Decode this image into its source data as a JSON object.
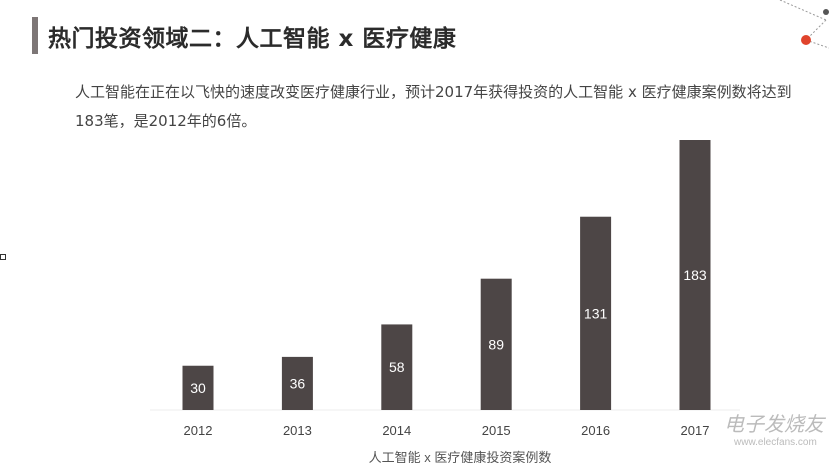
{
  "header": {
    "title": "热门投资领域二：人工智能 x 医疗健康",
    "description": "人工智能在正在以飞快的速度改变医疗健康行业，预计2017年获得投资的人工智能 x 医疗健康案例数将达到183笔，是2012年的6倍。"
  },
  "chart_data": {
    "type": "bar",
    "categories": [
      "2012",
      "2013",
      "2014",
      "2015",
      "2016",
      "2017"
    ],
    "values": [
      30,
      36,
      58,
      89,
      131,
      183
    ],
    "xlabel": "人工智能 x 医疗健康投资案例数",
    "ylabel": "",
    "ylim": [
      0,
      183
    ],
    "grid": false,
    "bar_color": "#4d4646",
    "label_color": "#ffffff"
  },
  "watermark": {
    "text": "电子发烧友",
    "url_text": "www.elecfans.com"
  },
  "colors": {
    "accent_dot": "#e0442c",
    "title_bar": "#7d7676"
  }
}
